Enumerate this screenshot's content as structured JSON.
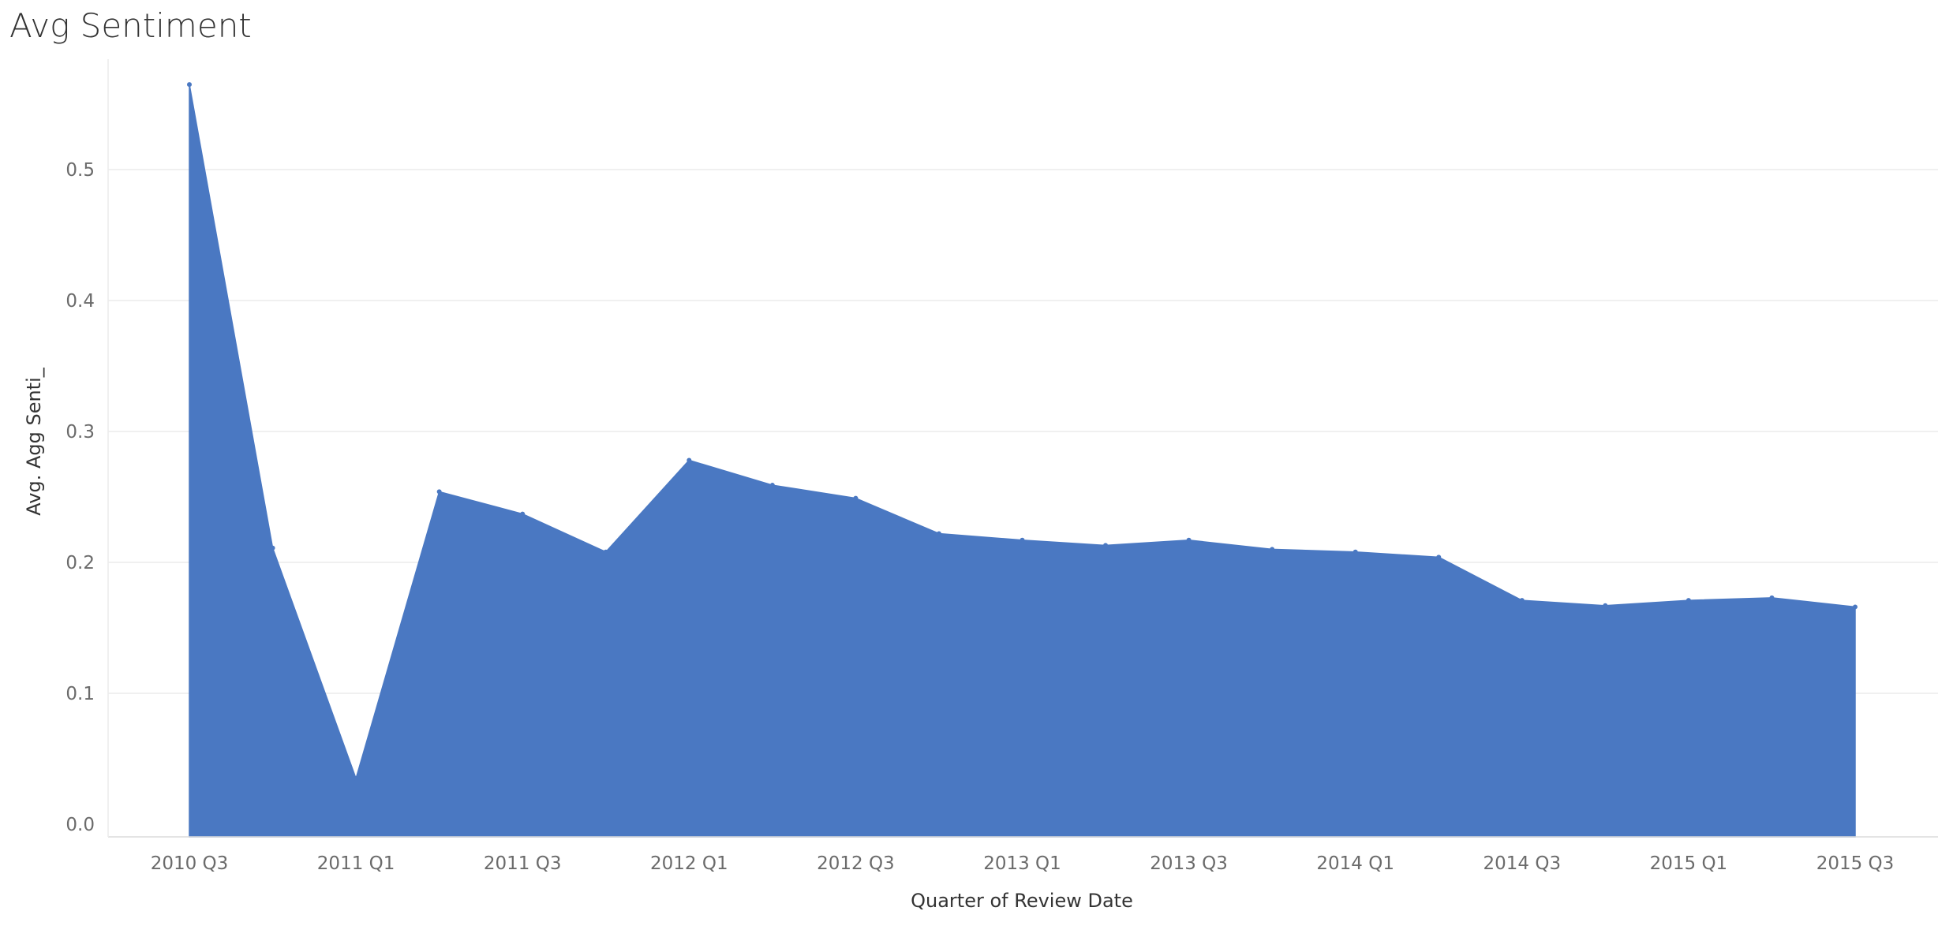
{
  "chart_data": {
    "type": "area",
    "title": "Avg Sentiment",
    "xlabel": "Quarter of Review Date",
    "ylabel": "Avg. Agg Senti_",
    "color": "#4a78c2",
    "grid": true,
    "ylim": [
      0,
      0.6
    ],
    "yticks": [
      "0.0",
      "0.1",
      "0.2",
      "0.3",
      "0.4",
      "0.5"
    ],
    "x_tick_labels": [
      "2010 Q3",
      "2011 Q1",
      "2011 Q3",
      "2012 Q1",
      "2012 Q3",
      "2013 Q1",
      "2013 Q3",
      "2014 Q1",
      "2014 Q3",
      "2015 Q1",
      "2015 Q3"
    ],
    "categories": [
      "2010 Q3",
      "2010 Q4",
      "2011 Q1",
      "2011 Q2",
      "2011 Q3",
      "2011 Q4",
      "2012 Q1",
      "2012 Q2",
      "2012 Q3",
      "2012 Q4",
      "2013 Q1",
      "2013 Q2",
      "2013 Q3",
      "2013 Q4",
      "2014 Q1",
      "2014 Q2",
      "2014 Q3",
      "2014 Q4",
      "2015 Q1",
      "2015 Q2",
      "2015 Q3"
    ],
    "values": [
      0.565,
      0.211,
      0.035,
      0.254,
      0.237,
      0.208,
      0.278,
      0.259,
      0.249,
      0.222,
      0.217,
      0.213,
      0.217,
      0.21,
      0.208,
      0.204,
      0.171,
      0.167,
      0.171,
      0.173,
      0.166
    ]
  }
}
